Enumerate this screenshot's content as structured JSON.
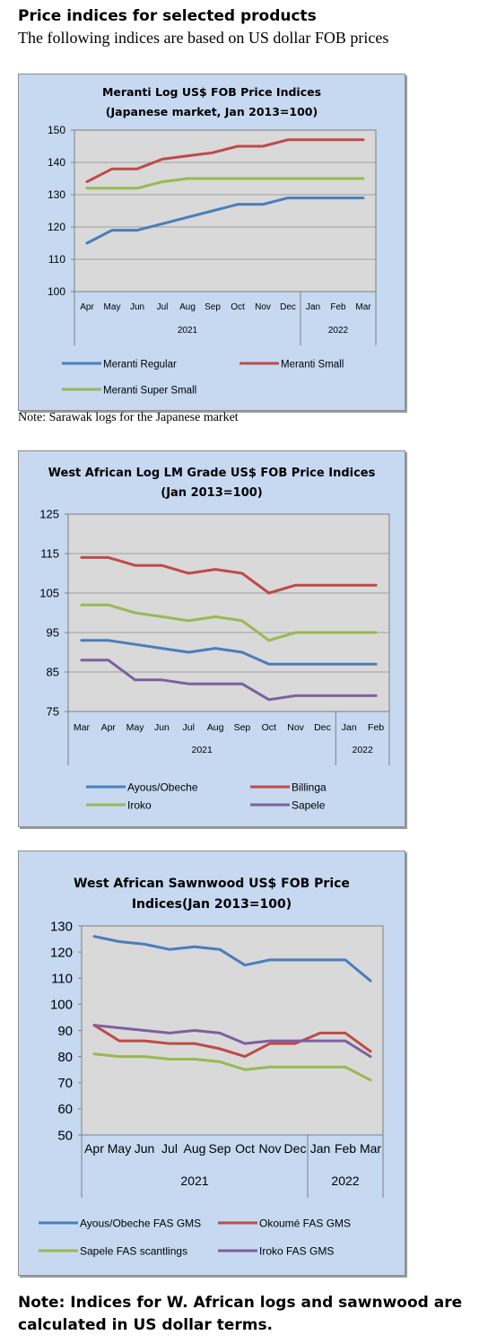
{
  "page": {
    "heading": "Price indices for selected products",
    "subheading": "The following indices are based on US dollar FOB prices",
    "note1": "Note: Sarawak logs for the Japanese market",
    "footnote": "Note: Indices for W. African logs and sawnwood are calculated in US dollar terms."
  },
  "chart_data": [
    {
      "type": "line",
      "title": "Meranti Log US$ FOB Price Indices",
      "subtitle": "(Japanese market, Jan 2013=100)",
      "categories": [
        "Apr",
        "May",
        "Jun",
        "Jul",
        "Aug",
        "Sep",
        "Oct",
        "Nov",
        "Dec",
        "Jan",
        "Feb",
        "Mar"
      ],
      "year_groups": [
        {
          "label": "2021",
          "span": 9
        },
        {
          "label": "2022",
          "span": 3
        }
      ],
      "ylim": [
        100,
        150
      ],
      "yticks": [
        100,
        110,
        120,
        130,
        140,
        150
      ],
      "grid": true,
      "legend_position": "bottom",
      "series": [
        {
          "name": "Meranti Regular",
          "color": "#4a7ebb",
          "values": [
            115,
            119,
            119,
            121,
            123,
            125,
            127,
            127,
            129,
            129,
            129,
            129
          ]
        },
        {
          "name": "Meranti Small",
          "color": "#be4b48",
          "values": [
            134,
            138,
            138,
            141,
            142,
            143,
            145,
            145,
            147,
            147,
            147,
            147
          ]
        },
        {
          "name": "Meranti Super Small",
          "color": "#98b954",
          "values": [
            132,
            132,
            132,
            134,
            135,
            135,
            135,
            135,
            135,
            135,
            135,
            135
          ]
        }
      ]
    },
    {
      "type": "line",
      "title": "West African Log LM Grade US$ FOB Price Indices",
      "subtitle": "(Jan 2013=100)",
      "categories": [
        "Mar",
        "Apr",
        "May",
        "Jun",
        "Jul",
        "Aug",
        "Sep",
        "Oct",
        "Nov",
        "Dec",
        "Jan",
        "Feb"
      ],
      "year_groups": [
        {
          "label": "2021",
          "span": 10
        },
        {
          "label": "2022",
          "span": 2
        }
      ],
      "ylim": [
        75,
        125
      ],
      "yticks": [
        75,
        85,
        95,
        105,
        115,
        125
      ],
      "grid": true,
      "legend_position": "bottom",
      "series": [
        {
          "name": "Ayous/Obeche",
          "color": "#4a7ebb",
          "values": [
            93,
            93,
            92,
            91,
            90,
            91,
            90,
            87,
            87,
            87,
            87,
            87
          ]
        },
        {
          "name": "Billinga",
          "color": "#be4b48",
          "values": [
            114,
            114,
            112,
            112,
            110,
            111,
            110,
            105,
            107,
            107,
            107,
            107
          ]
        },
        {
          "name": "Iroko",
          "color": "#98b954",
          "values": [
            102,
            102,
            100,
            99,
            98,
            99,
            98,
            93,
            95,
            95,
            95,
            95
          ]
        },
        {
          "name": "Sapele",
          "color": "#7d60a0",
          "values": [
            88,
            88,
            83,
            83,
            82,
            82,
            82,
            78,
            79,
            79,
            79,
            79
          ]
        }
      ]
    },
    {
      "type": "line",
      "title": "West African Sawnwood US$ FOB Price",
      "subtitle": "Indices(Jan 2013=100)",
      "categories": [
        "Apr",
        "May",
        "Jun",
        "Jul",
        "Aug",
        "Sep",
        "Oct",
        "Nov",
        "Dec",
        "Jan",
        "Feb",
        "Mar"
      ],
      "year_groups": [
        {
          "label": "2021",
          "span": 9
        },
        {
          "label": "2022",
          "span": 3
        }
      ],
      "ylim": [
        50,
        130
      ],
      "yticks": [
        50,
        60,
        70,
        80,
        90,
        100,
        110,
        120,
        130
      ],
      "grid": false,
      "legend_position": "bottom",
      "series": [
        {
          "name": "Ayous/Obeche FAS GMS",
          "color": "#4a7ebb",
          "values": [
            126,
            124,
            123,
            121,
            122,
            121,
            115,
            117,
            117,
            117,
            117,
            109
          ]
        },
        {
          "name": "Okoumé FAS GMS",
          "color": "#be4b48",
          "values": [
            92,
            86,
            86,
            85,
            85,
            83,
            80,
            85,
            85,
            89,
            89,
            82
          ]
        },
        {
          "name": "Sapele FAS scantlings",
          "color": "#98b954",
          "values": [
            81,
            80,
            80,
            79,
            79,
            78,
            75,
            76,
            76,
            76,
            76,
            71
          ]
        },
        {
          "name": "Iroko FAS GMS",
          "color": "#7d60a0",
          "values": [
            92,
            91,
            90,
            89,
            90,
            89,
            85,
            86,
            86,
            86,
            86,
            80
          ]
        }
      ]
    }
  ]
}
